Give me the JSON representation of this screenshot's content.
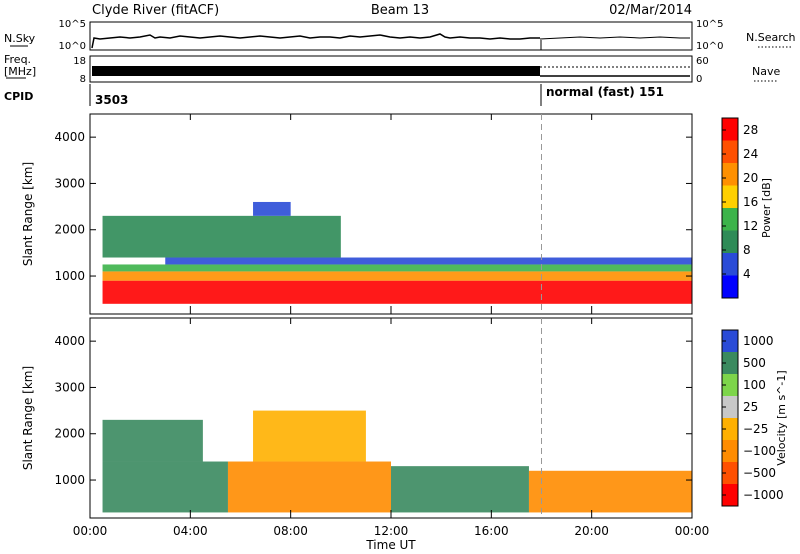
{
  "header": {
    "radar": "Clyde River (fitACF)",
    "beam": "Beam 13",
    "date": "02/Mar/2014"
  },
  "status_panels": {
    "nsky": {
      "label": "N.Sky",
      "left_ticks": [
        "10^5",
        "10^0"
      ],
      "right_label": "N.Search",
      "right_ticks": [
        "10^5",
        "10^0"
      ]
    },
    "freq": {
      "label_line1": "Freq.",
      "label_line2": "[MHz]",
      "left_ticks": [
        "18",
        "8"
      ],
      "right_label": "Nave",
      "right_ticks": [
        "60",
        "0"
      ]
    },
    "cpid": {
      "label": "CPID",
      "entries": [
        "3503",
        "normal (fast) 151"
      ]
    }
  },
  "colors": {
    "power_scale": [
      "#0000ff",
      "#2a4bd7",
      "#2e8b57",
      "#3cb34a",
      "#ffd000",
      "#ff9000",
      "#ff5000",
      "#ff0000"
    ],
    "velocity_scale": [
      "#ff0000",
      "#ff5000",
      "#ff8c00",
      "#ffb000",
      "#c8c8c8",
      "#7dd54a",
      "#3a8a5f",
      "#2a4bd7"
    ]
  },
  "chart_data": [
    {
      "type": "heatmap",
      "quantity": "Power",
      "ylabel": "Slant Range [km]",
      "xlabel": "Time UT",
      "ylim": [
        180,
        4500
      ],
      "yticks": [
        1000,
        2000,
        3000,
        4000
      ],
      "xticks": [
        "00:00",
        "04:00",
        "08:00",
        "12:00",
        "16:00",
        "20:00",
        "00:00"
      ],
      "colorbar": {
        "label": "Power [dB]",
        "ticks": [
          "4",
          "8",
          "12",
          "16",
          "20",
          "24",
          "28"
        ],
        "range": [
          0,
          30
        ]
      },
      "dashed_marker_time": "18:00",
      "bands": [
        {
          "range": [
            400,
            900
          ],
          "value": 30,
          "hours": [
            0.5,
            24
          ]
        },
        {
          "range": [
            900,
            1100
          ],
          "value": 22,
          "hours": [
            0.5,
            24
          ]
        },
        {
          "range": [
            1100,
            1250
          ],
          "value": 14,
          "hours": [
            0.5,
            24
          ]
        },
        {
          "range": [
            1250,
            1400
          ],
          "value": 6,
          "hours": [
            3.0,
            24
          ]
        },
        {
          "range": [
            1400,
            2300
          ],
          "value": 8,
          "hours": [
            0.5,
            10.0
          ]
        },
        {
          "range": [
            2300,
            2600
          ],
          "value": 6,
          "hours": [
            6.5,
            8.0
          ]
        }
      ]
    },
    {
      "type": "heatmap",
      "quantity": "Velocity",
      "ylabel": "Slant Range [km]",
      "xlabel": "Time UT",
      "ylim": [
        180,
        4500
      ],
      "yticks": [
        1000,
        2000,
        3000,
        4000
      ],
      "xticks": [
        "00:00",
        "04:00",
        "08:00",
        "12:00",
        "16:00",
        "20:00",
        "00:00"
      ],
      "colorbar": {
        "label": "Velocity [m s^-1]",
        "ticks": [
          "1000",
          "500",
          "100",
          "25",
          "−25",
          "−100",
          "−500",
          "−1000"
        ]
      },
      "dashed_marker_time": "18:00",
      "bands": [
        {
          "range": [
            300,
            1400
          ],
          "value": 150,
          "hours": [
            0.5,
            5.5
          ]
        },
        {
          "range": [
            300,
            1400
          ],
          "value": -150,
          "hours": [
            5.5,
            12.0
          ]
        },
        {
          "range": [
            300,
            1300
          ],
          "value": 150,
          "hours": [
            12.0,
            17.5
          ]
        },
        {
          "range": [
            300,
            1200
          ],
          "value": -150,
          "hours": [
            17.5,
            24
          ]
        },
        {
          "range": [
            1400,
            2300
          ],
          "value": 120,
          "hours": [
            0.5,
            4.5
          ]
        },
        {
          "range": [
            1400,
            2500
          ],
          "value": -60,
          "hours": [
            6.5,
            11.0
          ]
        }
      ]
    }
  ]
}
